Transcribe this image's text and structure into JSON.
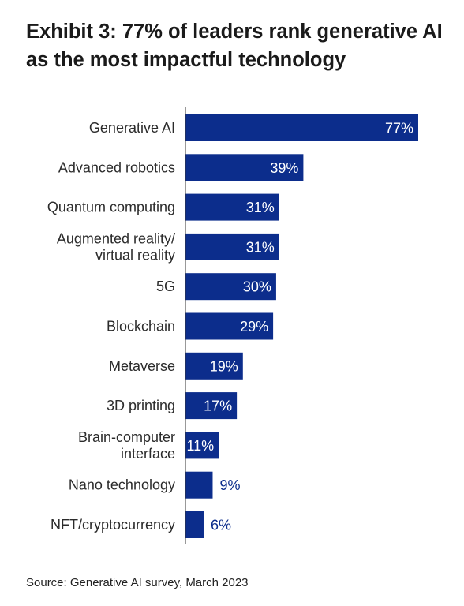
{
  "title": "Exhibit 3: 77% of leaders rank generative AI as the most impactful technology",
  "source": "Source: Generative AI survey, March 2023",
  "colors": {
    "bar": "#0c2d8c",
    "label_inside": "#ffffff",
    "label_outside": "#0c2d8c",
    "axis": "#333333"
  },
  "chart_data": {
    "type": "bar",
    "orientation": "horizontal",
    "categories": [
      [
        "Generative AI"
      ],
      [
        "Advanced robotics"
      ],
      [
        "Quantum computing"
      ],
      [
        "Augmented reality/",
        "virtual reality"
      ],
      [
        "5G"
      ],
      [
        "Blockchain"
      ],
      [
        "Metaverse"
      ],
      [
        "3D printing"
      ],
      [
        "Brain-computer",
        "interface"
      ],
      [
        "Nano technology"
      ],
      [
        "NFT/cryptocurrency"
      ]
    ],
    "values": [
      77,
      39,
      31,
      31,
      30,
      29,
      19,
      17,
      11,
      9,
      6
    ],
    "value_labels": [
      "77%",
      "39%",
      "31%",
      "31%",
      "30%",
      "29%",
      "19%",
      "17%",
      "11%",
      "9%",
      "6%"
    ],
    "unit": "%",
    "xlim": [
      0,
      77
    ],
    "grid": false,
    "legend": "none"
  }
}
